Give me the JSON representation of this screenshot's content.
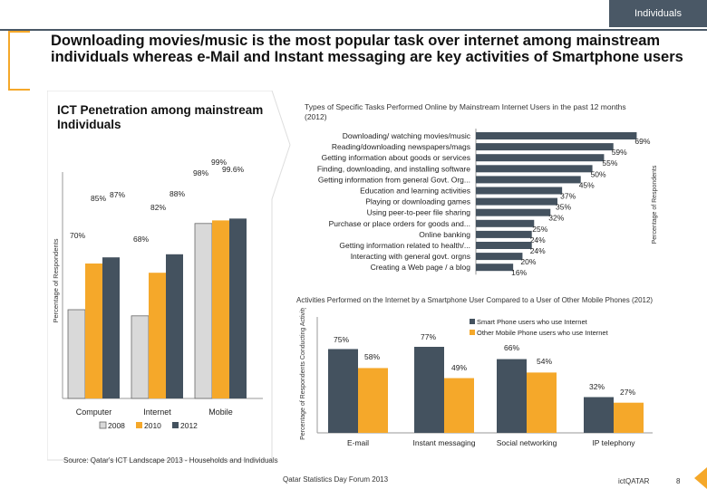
{
  "header": {
    "tag": "Individuals"
  },
  "title": "Downloading movies/music is the most popular task over internet among mainstream individuals whereas e-Mail and Instant messaging are key activities of Smartphone users",
  "colors": {
    "accent": "#f5a82a",
    "dark": "#44525f",
    "light_gray": "#d9d9d9",
    "panel_bg": "#eeeeee"
  },
  "chart_data": [
    {
      "type": "bar",
      "title": "ICT Penetration among mainstream Individuals",
      "ylabel": "Percentage of Respondents",
      "categories": [
        "Computer",
        "Internet",
        "Mobile"
      ],
      "series": [
        {
          "name": "2008",
          "values": [
            70,
            68,
            98
          ]
        },
        {
          "name": "2010",
          "values": [
            85,
            82,
            99
          ]
        },
        {
          "name": "2012",
          "values": [
            87,
            88,
            99.6
          ]
        }
      ],
      "labels": [
        [
          "70%",
          "85%",
          "87%"
        ],
        [
          "68%",
          "82%",
          "88%"
        ],
        [
          "98%",
          "99%",
          "99.6%"
        ]
      ],
      "legend": [
        "2008",
        "2010",
        "2012"
      ],
      "ylim": [
        0,
        100
      ]
    },
    {
      "type": "bar",
      "orientation": "horizontal",
      "title": "Types of Specific Tasks Performed Online by Mainstream Internet Users in the past 12 months (2012)",
      "ylabel": "Percentage of Respondents",
      "categories": [
        "Downloading/ watching movies/music",
        "Reading/downloading newspapers/mags",
        "Getting information about goods or services",
        "Finding, downloading, and installing software",
        "Getting information from general Govt. Org...",
        "Education and learning activities",
        "Playing or downloading games",
        "Using peer-to-peer file sharing",
        "Purchase or place orders for goods and...",
        "Online banking",
        "Getting information related to health/...",
        "Interacting with general govt. orgns",
        "Creating a Web page / a blog"
      ],
      "values": [
        69,
        59,
        55,
        50,
        45,
        37,
        35,
        32,
        25,
        24,
        24,
        20,
        16
      ],
      "labels": [
        "69%",
        "59%",
        "55%",
        "50%",
        "45%",
        "37%",
        "35%",
        "32%",
        "25%",
        "24%",
        "24%",
        "20%",
        "16%"
      ],
      "xlim": [
        0,
        70
      ]
    },
    {
      "type": "bar",
      "title": "Activities Performed on the Internet by a Smartphone User Compared to a User of Other Mobile Phones (2012)",
      "ylabel": "Percentage of Respondents Conducting Activity Every",
      "categories": [
        "E-mail",
        "Instant messaging",
        "Social networking",
        "IP telephony"
      ],
      "series": [
        {
          "name": "Smart Phone users who use Internet",
          "values": [
            75,
            77,
            66,
            32
          ]
        },
        {
          "name": "Other Mobile Phone users who use Internet",
          "values": [
            58,
            49,
            54,
            27
          ]
        }
      ],
      "labels": [
        [
          "75%",
          "58%"
        ],
        [
          "77%",
          "49%"
        ],
        [
          "66%",
          "54%"
        ],
        [
          "32%",
          "27%"
        ]
      ],
      "ylim": [
        0,
        100
      ]
    }
  ],
  "footer": {
    "source": "Source: Qatar's ICT Landscape 2013 - Households and Individuals",
    "event": "Qatar Statistics Day Forum 2013",
    "brand": "ictQATAR",
    "page": "8"
  }
}
